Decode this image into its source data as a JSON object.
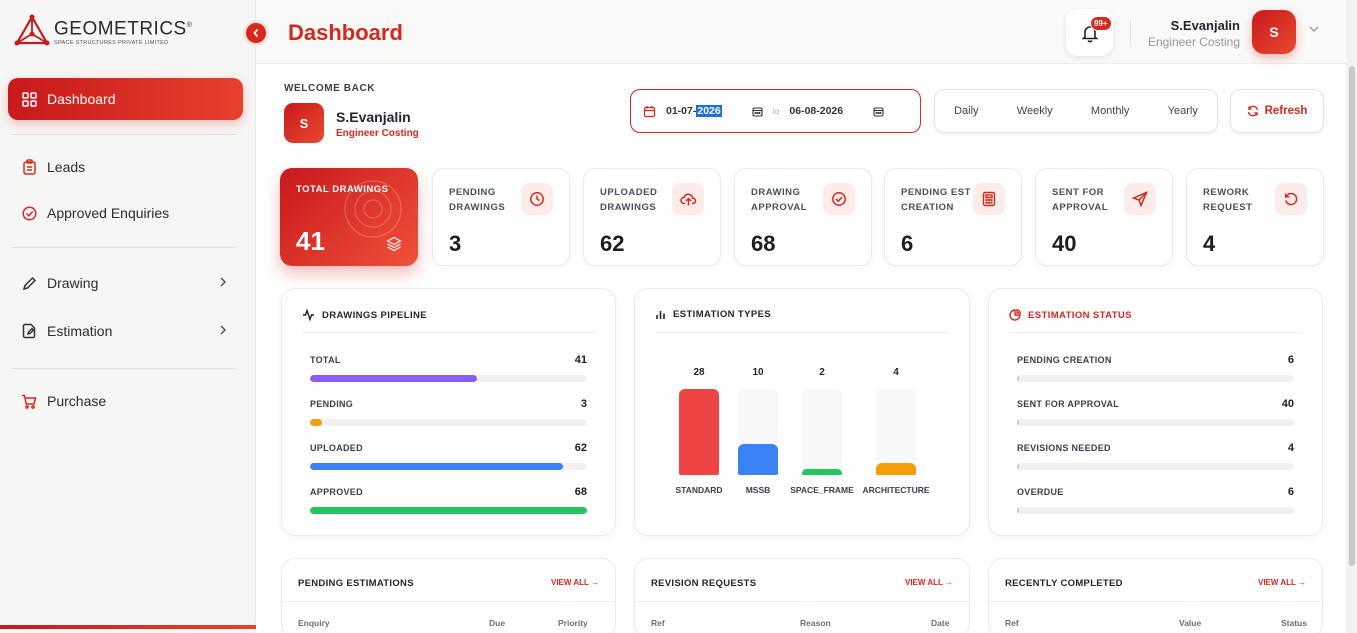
{
  "brand": {
    "name": "GEOMETRICS",
    "reg": "®",
    "tagline": "SPACE STRUCTURES PRIVATE LIMITED"
  },
  "sidebar": {
    "items": [
      {
        "label": "Dashboard",
        "icon": "grid-icon",
        "active": true
      },
      {
        "label": "Leads",
        "icon": "clipboard-icon"
      },
      {
        "label": "Approved Enquiries",
        "icon": "check-circle-icon"
      },
      {
        "label": "Drawing",
        "icon": "pencil-icon",
        "has_submenu": true
      },
      {
        "label": "Estimation",
        "icon": "file-edit-icon",
        "has_submenu": true
      },
      {
        "label": "Purchase",
        "icon": "cart-icon"
      }
    ]
  },
  "header": {
    "title": "Dashboard",
    "notification_badge": "99+",
    "user_name": "S.Evanjalin",
    "user_role": "Engineer Costing",
    "avatar_initial": "S"
  },
  "welcome": {
    "label": "WELCOME BACK",
    "name": "S.Evanjalin",
    "role": "Engineer Costing",
    "avatar_initial": "S"
  },
  "date_range": {
    "from_prefix": "01-07-",
    "from_year": "2026",
    "to_label": "to",
    "to": "06-08-2026"
  },
  "periods": [
    "Daily",
    "Weekly",
    "Monthly",
    "Yearly"
  ],
  "refresh_label": "Refresh",
  "stats": [
    {
      "label": "TOTAL DRAWINGS",
      "value": "41",
      "icon": "layers-icon"
    },
    {
      "label": "PENDING DRAWINGS",
      "value": "3",
      "icon": "clock-icon"
    },
    {
      "label": "UPLOADED DRAWINGS",
      "value": "62",
      "icon": "upload-cloud-icon"
    },
    {
      "label": "DRAWING APPROVAL",
      "value": "68",
      "icon": "check-circle-icon"
    },
    {
      "label": "PENDING EST CREATION",
      "value": "6",
      "icon": "calculator-icon"
    },
    {
      "label": "SENT FOR APPROVAL",
      "value": "40",
      "icon": "send-icon"
    },
    {
      "label": "REWORK REQUEST",
      "value": "4",
      "icon": "rotate-icon"
    }
  ],
  "pipeline": {
    "title": "DRAWINGS PIPELINE",
    "max": 68,
    "rows": [
      {
        "label": "TOTAL",
        "value": 41,
        "color": "#8b5cf6"
      },
      {
        "label": "PENDING",
        "value": 3,
        "color": "#f59e0b"
      },
      {
        "label": "UPLOADED",
        "value": 62,
        "color": "#3b82f6"
      },
      {
        "label": "APPROVED",
        "value": 68,
        "color": "#22c55e"
      }
    ]
  },
  "estimation_types": {
    "title": "ESTIMATION TYPES",
    "chart_data": {
      "type": "bar",
      "categories": [
        "STANDARD",
        "MSSB",
        "SPACE_FRAME",
        "ARCHITECTURE"
      ],
      "values": [
        28,
        10,
        2,
        4
      ],
      "colors": [
        "#ef4444",
        "#3b82f6",
        "#22c55e",
        "#f59e0b"
      ]
    }
  },
  "estimation_status": {
    "title": "ESTIMATION STATUS",
    "rows": [
      {
        "label": "PENDING CREATION",
        "value": 6
      },
      {
        "label": "SENT FOR APPROVAL",
        "value": 40
      },
      {
        "label": "REVISIONS NEEDED",
        "value": 4
      },
      {
        "label": "OVERDUE",
        "value": 6
      }
    ]
  },
  "tables": [
    {
      "title": "PENDING ESTIMATIONS",
      "view_all": "VIEW ALL →",
      "columns": [
        "Enquiry",
        "Due",
        "Priority"
      ]
    },
    {
      "title": "REVISION REQUESTS",
      "view_all": "VIEW ALL →",
      "columns": [
        "Ref",
        "Reason",
        "Date"
      ]
    },
    {
      "title": "RECENTLY COMPLETED",
      "view_all": "VIEW ALL →",
      "columns": [
        "Ref",
        "Value",
        "Status"
      ]
    }
  ]
}
